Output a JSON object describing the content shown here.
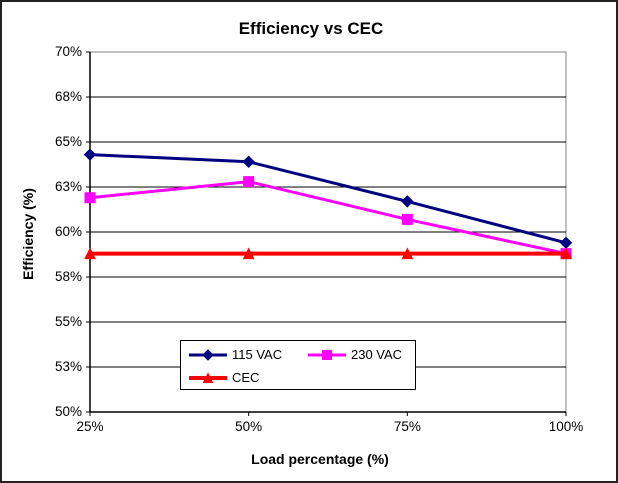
{
  "chart_data": {
    "type": "line",
    "title": "Efficiency vs CEC",
    "xlabel": "Load percentage (%)",
    "ylabel": "Efficiency (%)",
    "x": [
      25,
      50,
      75,
      100
    ],
    "x_tick_labels": [
      "25%",
      "50%",
      "75%",
      "100%"
    ],
    "xlim": [
      25,
      100
    ],
    "ylim": [
      50,
      70
    ],
    "y_major_unit": 2.5,
    "y_ticks": [
      {
        "value": 70.0,
        "label": "70%"
      },
      {
        "value": 67.5,
        "label": "68%"
      },
      {
        "value": 65.0,
        "label": "65%"
      },
      {
        "value": 62.5,
        "label": "63%"
      },
      {
        "value": 60.0,
        "label": "60%"
      },
      {
        "value": 57.5,
        "label": "58%"
      },
      {
        "value": 55.0,
        "label": "55%"
      },
      {
        "value": 52.5,
        "label": "53%"
      },
      {
        "value": 50.0,
        "label": "50%"
      }
    ],
    "grid": "horizontal-only",
    "legend": {
      "position": "inside-bottom-center-box",
      "rows": [
        [
          "115 VAC",
          "230 VAC"
        ],
        [
          "CEC"
        ]
      ]
    },
    "series": [
      {
        "name": "115 VAC",
        "color": "#000080",
        "marker": "diamond",
        "line_width": 3,
        "values": [
          64.3,
          63.9,
          61.7,
          59.4
        ]
      },
      {
        "name": "230 VAC",
        "color": "#FF00FF",
        "marker": "square",
        "line_width": 3,
        "values": [
          61.9,
          62.8,
          60.7,
          58.8
        ]
      },
      {
        "name": "CEC",
        "color": "#FF0000",
        "marker": "triangle",
        "line_width": 4,
        "values": [
          58.8,
          58.8,
          58.8,
          58.8
        ]
      }
    ],
    "frame_color": "#808080",
    "axis_color": "#000000",
    "gridline_color": "#000000"
  }
}
